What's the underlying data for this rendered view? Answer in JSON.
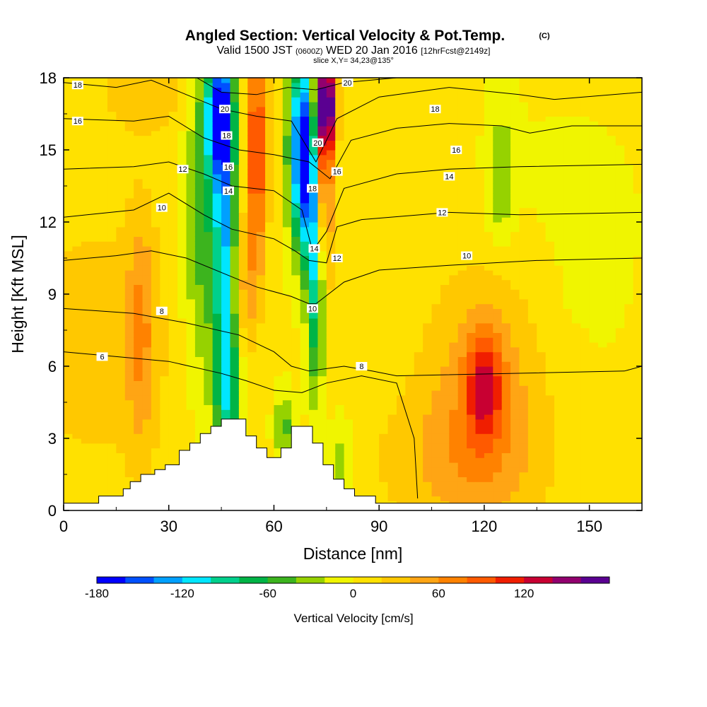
{
  "chart_data": {
    "type": "heatmap",
    "title": "Angled Section: Vertical Velocity & Pot.Temp.",
    "title_units": "(C)",
    "subtitle": {
      "main1": "Valid 1500 JST ",
      "utc": "(0600Z)",
      "main2": " WED 20 Jan 2016 ",
      "fcst": "[12hrFcst@2149z]"
    },
    "slice_info": "slice X,Y= 34,23@135°",
    "xlabel": "Distance [nm]",
    "ylabel": "Height [Kft MSL]",
    "xlim": [
      0,
      165
    ],
    "ylim": [
      0,
      18
    ],
    "xticks": [
      0,
      30,
      60,
      90,
      120,
      150
    ],
    "yticks": [
      0,
      3,
      6,
      9,
      12,
      15,
      18
    ],
    "colorbar": {
      "label": "Vertical Velocity [cm/s]",
      "min": -180,
      "step": 20,
      "tick_labels": [
        "-180",
        "-120",
        "-60",
        "0",
        "60",
        "120"
      ],
      "tick_values": [
        -180,
        -120,
        -60,
        0,
        60,
        120
      ],
      "colors": [
        "#0000ff",
        "#0050ff",
        "#00a0ff",
        "#00e6ff",
        "#00d08c",
        "#00b446",
        "#3cb41e",
        "#96d200",
        "#f0f500",
        "#ffe100",
        "#ffc800",
        "#ffa514",
        "#ff8200",
        "#ff5a00",
        "#f01e00",
        "#c80032",
        "#91006e",
        "#5a0091"
      ]
    },
    "terrain": [
      [
        0,
        0.3
      ],
      [
        10,
        0.3
      ],
      [
        10,
        0.6
      ],
      [
        17,
        0.6
      ],
      [
        17,
        0.9
      ],
      [
        19,
        0.9
      ],
      [
        19,
        1.2
      ],
      [
        22,
        1.2
      ],
      [
        22,
        1.5
      ],
      [
        26,
        1.5
      ],
      [
        26,
        1.7
      ],
      [
        29,
        1.7
      ],
      [
        29,
        1.9
      ],
      [
        33,
        1.9
      ],
      [
        33,
        2.5
      ],
      [
        36,
        2.5
      ],
      [
        36,
        2.8
      ],
      [
        39,
        2.8
      ],
      [
        39,
        3.2
      ],
      [
        42,
        3.2
      ],
      [
        42,
        3.5
      ],
      [
        45,
        3.5
      ],
      [
        45,
        3.8
      ],
      [
        52,
        3.8
      ],
      [
        52,
        3.1
      ],
      [
        55,
        3.1
      ],
      [
        55,
        2.6
      ],
      [
        58,
        2.6
      ],
      [
        58,
        2.2
      ],
      [
        62,
        2.2
      ],
      [
        62,
        2.6
      ],
      [
        65,
        2.6
      ],
      [
        65,
        3.5
      ],
      [
        71,
        3.5
      ],
      [
        71,
        2.8
      ],
      [
        74,
        2.8
      ],
      [
        74,
        1.9
      ],
      [
        77,
        1.9
      ],
      [
        77,
        1.3
      ],
      [
        80,
        1.3
      ],
      [
        80,
        0.9
      ],
      [
        83,
        0.9
      ],
      [
        83,
        0.6
      ],
      [
        89,
        0.6
      ],
      [
        89,
        0.3
      ],
      [
        165,
        0.3
      ]
    ],
    "w_blobs": [
      {
        "x": 47,
        "y": 5,
        "rx": 4,
        "ry": 3,
        "w": -70
      },
      {
        "x": 40,
        "y": 12,
        "rx": 6,
        "ry": 7,
        "w": -60
      },
      {
        "x": 46,
        "y": 12.5,
        "rx": 3,
        "ry": 8,
        "w": -110
      },
      {
        "x": 44,
        "y": 16.5,
        "rx": 4,
        "ry": 2.5,
        "w": -130
      },
      {
        "x": 55,
        "y": 15,
        "rx": 3,
        "ry": 5,
        "w": 100
      },
      {
        "x": 52,
        "y": 9,
        "rx": 3,
        "ry": 2.5,
        "w": 40
      },
      {
        "x": 72,
        "y": 10,
        "rx": 2.5,
        "ry": 5,
        "w": -110
      },
      {
        "x": 67,
        "y": 15,
        "rx": 3,
        "ry": 4,
        "w": -150
      },
      {
        "x": 70,
        "y": 14.5,
        "rx": 1.5,
        "ry": 4,
        "w": -180
      },
      {
        "x": 74,
        "y": 14,
        "rx": 3,
        "ry": 5,
        "w": 90
      },
      {
        "x": 75,
        "y": 17,
        "rx": 2.5,
        "ry": 2,
        "w": 160
      },
      {
        "x": 79,
        "y": 1.8,
        "rx": 3.5,
        "ry": 2,
        "w": -40
      },
      {
        "x": 63,
        "y": 3.5,
        "rx": 3,
        "ry": 1.5,
        "w": -50
      },
      {
        "x": 120,
        "y": 4.8,
        "rx": 17,
        "ry": 5.5,
        "w": 50
      },
      {
        "x": 120,
        "y": 5.2,
        "rx": 5,
        "ry": 2.2,
        "w": 80
      },
      {
        "x": 22,
        "y": 7.5,
        "rx": 4,
        "ry": 5,
        "w": 45
      },
      {
        "x": 10,
        "y": 7,
        "rx": 25,
        "ry": 6,
        "w": 25
      },
      {
        "x": 110,
        "y": 2,
        "rx": 25,
        "ry": 3,
        "w": 25
      },
      {
        "x": 140,
        "y": 13,
        "rx": 30,
        "ry": 5,
        "w": -8
      },
      {
        "x": 125,
        "y": 14.5,
        "rx": 4,
        "ry": 3,
        "w": -30
      },
      {
        "x": 124,
        "y": 13,
        "rx": 3,
        "ry": 1.8,
        "w": -20
      },
      {
        "x": 145,
        "y": 11,
        "rx": 1.8,
        "ry": 2,
        "w": -20
      },
      {
        "x": 25,
        "y": 17.5,
        "rx": 15,
        "ry": 1.8,
        "w": 30
      },
      {
        "x": 150,
        "y": 8,
        "rx": 15,
        "ry": 5,
        "w": -5
      }
    ],
    "theta_contours": [
      {
        "label": "6",
        "points": [
          [
            0,
            6.6
          ],
          [
            15,
            6.4
          ],
          [
            30,
            6.2
          ],
          [
            45,
            5.7
          ],
          [
            52,
            5.4
          ],
          [
            60,
            5.0
          ],
          [
            68,
            4.9
          ],
          [
            75,
            5.3
          ],
          [
            85,
            5.6
          ],
          [
            95,
            5.3
          ],
          [
            100,
            3.0
          ],
          [
            101,
            0.5
          ]
        ],
        "label_at": [
          11,
          6.4
        ]
      },
      {
        "label": "8",
        "points": [
          [
            0,
            8.4
          ],
          [
            20,
            8.2
          ],
          [
            35,
            7.8
          ],
          [
            50,
            7.3
          ],
          [
            60,
            6.6
          ],
          [
            65,
            6.0
          ],
          [
            70,
            5.8
          ],
          [
            75,
            5.9
          ],
          [
            80,
            6.0
          ],
          [
            88,
            5.8
          ],
          [
            95,
            5.6
          ],
          [
            160,
            5.8
          ],
          [
            165,
            6.0
          ]
        ],
        "label_at": [
          28,
          8.2
        ]
      },
      {
        "label": "10",
        "points": [
          [
            0,
            10.4
          ],
          [
            15,
            10.6
          ],
          [
            25,
            10.8
          ],
          [
            35,
            10.5
          ],
          [
            45,
            9.9
          ],
          [
            55,
            9.3
          ],
          [
            65,
            8.9
          ],
          [
            70,
            8.6
          ],
          [
            72,
            8.6
          ],
          [
            80,
            9.5
          ],
          [
            90,
            10.0
          ],
          [
            110,
            10.2
          ],
          [
            135,
            10.4
          ],
          [
            165,
            10.5
          ]
        ],
        "label_at": [
          28,
          12.6
        ]
      },
      {
        "label": "12",
        "points": [
          [
            0,
            12.2
          ],
          [
            20,
            12.5
          ],
          [
            30,
            13.2
          ],
          [
            40,
            12.3
          ],
          [
            48,
            11.7
          ],
          [
            60,
            11.3
          ],
          [
            66,
            10.8
          ],
          [
            70,
            10.4
          ],
          [
            75,
            10.3
          ],
          [
            78,
            11.8
          ],
          [
            85,
            12.1
          ],
          [
            110,
            12.4
          ],
          [
            130,
            12.3
          ],
          [
            165,
            12.4
          ]
        ],
        "label_at": [
          34,
          14.2
        ]
      },
      {
        "label": "14",
        "points": [
          [
            0,
            14.2
          ],
          [
            20,
            14.3
          ],
          [
            30,
            14.5
          ],
          [
            40,
            14.0
          ],
          [
            48,
            13.5
          ],
          [
            60,
            13.3
          ],
          [
            68,
            12.5
          ],
          [
            71,
            10.8
          ],
          [
            75,
            11.6
          ],
          [
            80,
            13.4
          ],
          [
            95,
            14.0
          ],
          [
            110,
            14.2
          ],
          [
            130,
            14.3
          ],
          [
            165,
            14.4
          ]
        ],
        "label_at": [
          46,
          13.3
        ]
      },
      {
        "label": "16",
        "points": [
          [
            0,
            16.3
          ],
          [
            20,
            16.2
          ],
          [
            30,
            16.4
          ],
          [
            40,
            15.5
          ],
          [
            50,
            15.0
          ],
          [
            60,
            14.8
          ],
          [
            70,
            14.5
          ],
          [
            76,
            13.8
          ],
          [
            82,
            15.4
          ],
          [
            95,
            15.9
          ],
          [
            110,
            16.1
          ],
          [
            125,
            16.0
          ],
          [
            133,
            15.7
          ],
          [
            145,
            16.0
          ],
          [
            165,
            16.0
          ]
        ],
        "label_at": [
          46,
          14.5
        ]
      },
      {
        "label": "18",
        "points": [
          [
            0,
            17.8
          ],
          [
            15,
            17.6
          ],
          [
            25,
            17.9
          ],
          [
            35,
            17.3
          ],
          [
            45,
            16.7
          ],
          [
            55,
            16.4
          ],
          [
            65,
            16.2
          ],
          [
            72,
            14.5
          ],
          [
            78,
            16.3
          ],
          [
            90,
            17.2
          ],
          [
            110,
            17.6
          ],
          [
            130,
            17.3
          ],
          [
            140,
            17.1
          ],
          [
            165,
            17.4
          ]
        ],
        "label_at": [
          68,
          13.4
        ]
      },
      {
        "label": "20",
        "points": [
          [
            38,
            18
          ],
          [
            45,
            17.4
          ],
          [
            55,
            17.3
          ],
          [
            64,
            17.6
          ],
          [
            72,
            17.5
          ],
          [
            80,
            17.8
          ],
          [
            95,
            18.0
          ]
        ],
        "label_at": [
          68,
          15.3
        ]
      }
    ],
    "contour_labels": [
      {
        "text": "18",
        "x": 4,
        "y": 17.7
      },
      {
        "text": "16",
        "x": 4,
        "y": 16.2
      },
      {
        "text": "12",
        "x": 34,
        "y": 14.2
      },
      {
        "text": "10",
        "x": 28,
        "y": 12.6
      },
      {
        "text": "8",
        "x": 28,
        "y": 8.3
      },
      {
        "text": "6",
        "x": 11,
        "y": 6.4
      },
      {
        "text": "20",
        "x": 46,
        "y": 16.7
      },
      {
        "text": "18",
        "x": 46.5,
        "y": 15.6
      },
      {
        "text": "16",
        "x": 47,
        "y": 14.3
      },
      {
        "text": "14",
        "x": 47,
        "y": 13.3
      },
      {
        "text": "20",
        "x": 72.5,
        "y": 15.3
      },
      {
        "text": "16",
        "x": 78,
        "y": 14.1
      },
      {
        "text": "18",
        "x": 71,
        "y": 13.4
      },
      {
        "text": "14",
        "x": 71.5,
        "y": 10.9
      },
      {
        "text": "12",
        "x": 78,
        "y": 10.5
      },
      {
        "text": "10",
        "x": 71,
        "y": 8.4
      },
      {
        "text": "8",
        "x": 85,
        "y": 6.0
      },
      {
        "text": "20",
        "x": 81,
        "y": 17.8
      },
      {
        "text": "18",
        "x": 106,
        "y": 16.7
      },
      {
        "text": "16",
        "x": 112,
        "y": 15.0
      },
      {
        "text": "14",
        "x": 110,
        "y": 13.9
      },
      {
        "text": "12",
        "x": 108,
        "y": 12.4
      },
      {
        "text": "10",
        "x": 115,
        "y": 10.6
      }
    ]
  }
}
